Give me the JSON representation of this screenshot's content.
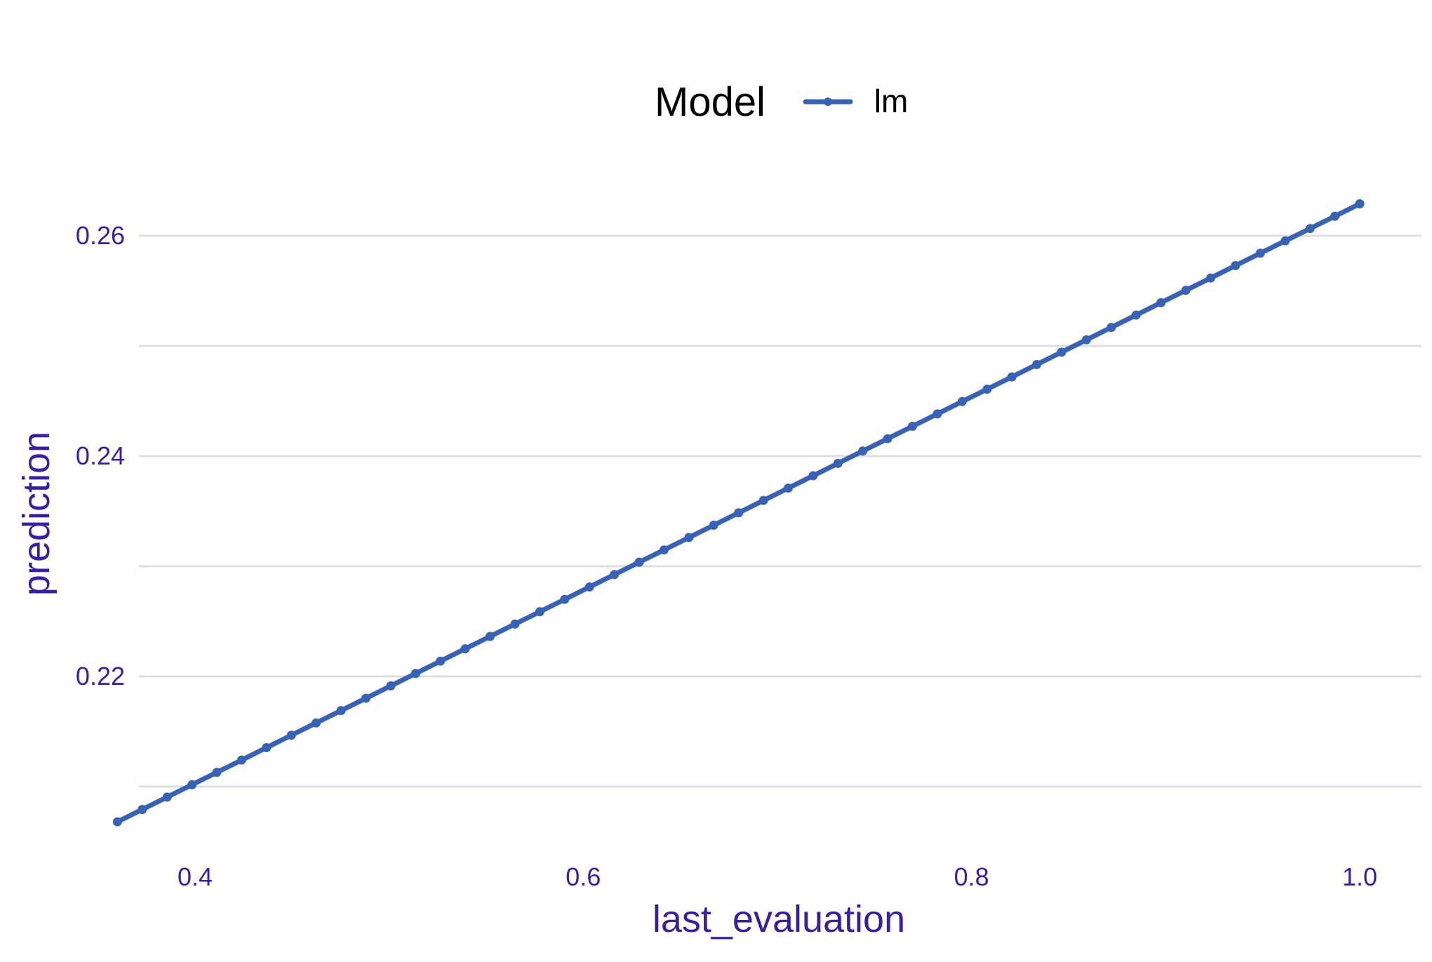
{
  "chart_data": {
    "type": "line",
    "title": "",
    "xlabel": "last_evaluation",
    "ylabel": "prediction",
    "xlim": [
      0.345,
      1.0
    ],
    "ylim": [
      0.205,
      0.265
    ],
    "x_ticks": [
      0.4,
      0.6,
      0.8,
      1.0
    ],
    "x_tick_labels": [
      "0.4",
      "0.6",
      "0.8",
      "1.0"
    ],
    "y_ticks": [
      0.22,
      0.24,
      0.26
    ],
    "y_tick_labels": [
      "0.22",
      "0.24",
      "0.26"
    ],
    "y_minor_gridlines": [
      0.21,
      0.23,
      0.25
    ],
    "grid": "horizontal",
    "legend": {
      "title": "Model",
      "placement": "top",
      "entries": [
        "lm"
      ]
    },
    "colors": {
      "series": "#3862b4",
      "axis_text": "#371ea3",
      "gridline": "#dddde5",
      "legend_title": "#000000"
    },
    "series": [
      {
        "name": "lm",
        "x_start": 0.36,
        "x_end": 1.0,
        "y_start": 0.2068,
        "y_end": 0.2629,
        "n_points": 51
      }
    ]
  }
}
